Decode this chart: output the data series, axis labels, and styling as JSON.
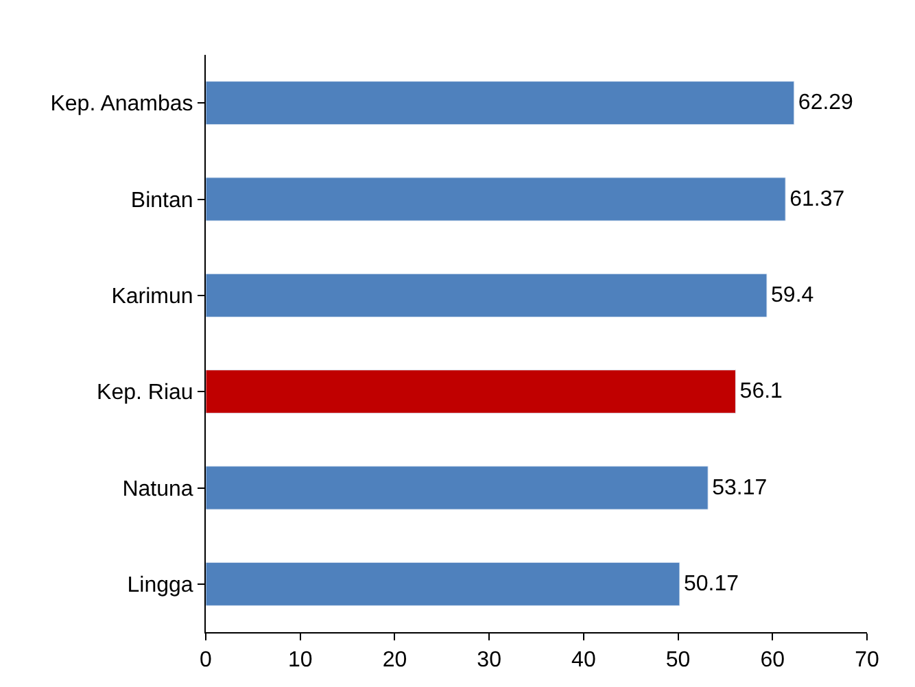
{
  "chart_data": {
    "type": "bar",
    "orientation": "horizontal",
    "categories": [
      "Kep. Anambas",
      "Bintan",
      "Karimun",
      "Kep. Riau",
      "Natuna",
      "Lingga"
    ],
    "values": [
      62.29,
      61.37,
      59.4,
      56.1,
      53.17,
      50.17
    ],
    "colors": [
      "#4f81bd",
      "#4f81bd",
      "#4f81bd",
      "#c00000",
      "#4f81bd",
      "#4f81bd"
    ],
    "xlim": [
      0,
      70
    ],
    "xticks": [
      0,
      10,
      20,
      30,
      40,
      50,
      60,
      70
    ],
    "data_labels": true
  }
}
